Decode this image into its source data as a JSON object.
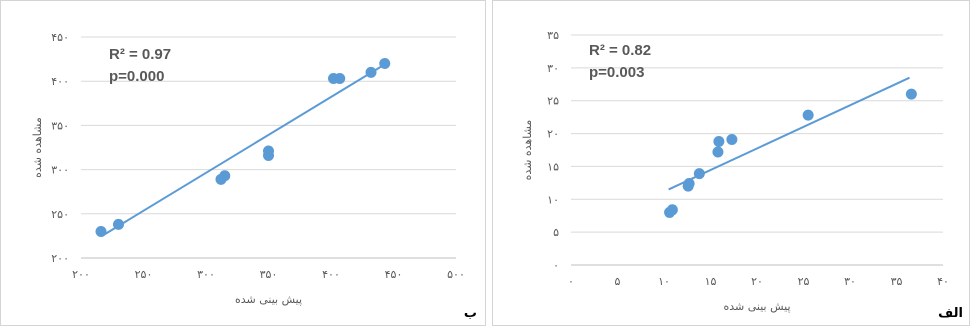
{
  "chart_data": [
    {
      "id": "b",
      "type": "scatter",
      "panel_label": "ب",
      "xlabel": "پیش بینی شده",
      "ylabel": "مشاهده شده",
      "xlim": [
        200,
        500
      ],
      "ylim": [
        200,
        450
      ],
      "xticks": [
        200,
        250,
        300,
        350,
        400,
        450,
        500
      ],
      "yticks": [
        200,
        250,
        300,
        350,
        400,
        450
      ],
      "xtick_labels": [
        "۲۰۰",
        "۲۵۰",
        "۳۰۰",
        "۳۵۰",
        "۴۰۰",
        "۴۵۰",
        "۵۰۰"
      ],
      "ytick_labels": [
        "۲۰۰",
        "۲۵۰",
        "۳۰۰",
        "۳۵۰",
        "۴۰۰",
        "۴۵۰"
      ],
      "annotations": [
        "R² = 0.97",
        "p=0.000"
      ],
      "points": [
        {
          "x": 216,
          "y": 230
        },
        {
          "x": 230,
          "y": 238
        },
        {
          "x": 312,
          "y": 289
        },
        {
          "x": 315,
          "y": 293
        },
        {
          "x": 350,
          "y": 316
        },
        {
          "x": 350,
          "y": 321
        },
        {
          "x": 402,
          "y": 403
        },
        {
          "x": 407,
          "y": 403
        },
        {
          "x": 432,
          "y": 410
        },
        {
          "x": 443,
          "y": 420
        }
      ],
      "trendline": {
        "x": [
          218,
          443
        ],
        "y": [
          226,
          419
        ]
      },
      "colors": {
        "point": "#5b9bd5",
        "trendline": "#5b9bd5",
        "grid": "#d9d9d9"
      }
    },
    {
      "id": "alef",
      "type": "scatter",
      "panel_label": "الف",
      "xlabel": "پیش بینی شده",
      "ylabel": "مشاهده شده",
      "xlim": [
        0,
        40
      ],
      "ylim": [
        0,
        35
      ],
      "xticks": [
        0,
        5,
        10,
        15,
        20,
        25,
        30,
        35,
        40
      ],
      "yticks": [
        0,
        5,
        10,
        15,
        20,
        25,
        30,
        35
      ],
      "xtick_labels": [
        "۰",
        "۵",
        "۱۰",
        "۱۵",
        "۲۰",
        "۲۵",
        "۳۰",
        "۳۵",
        "۴۰"
      ],
      "ytick_labels": [
        "۰",
        "۵",
        "۱۰",
        "۱۵",
        "۲۰",
        "۲۵",
        "۳۰",
        "۳۵"
      ],
      "annotations": [
        "R² = 0.82",
        "p=0.003"
      ],
      "points": [
        {
          "x": 10.6,
          "y": 8.0
        },
        {
          "x": 10.9,
          "y": 8.4
        },
        {
          "x": 12.6,
          "y": 12.0
        },
        {
          "x": 12.7,
          "y": 12.4
        },
        {
          "x": 13.8,
          "y": 13.9
        },
        {
          "x": 15.8,
          "y": 17.2
        },
        {
          "x": 15.9,
          "y": 18.8
        },
        {
          "x": 17.3,
          "y": 19.1
        },
        {
          "x": 25.5,
          "y": 22.8
        },
        {
          "x": 36.6,
          "y": 26.0
        }
      ],
      "trendline": {
        "x": [
          10.5,
          36.4
        ],
        "y": [
          11.5,
          28.5
        ]
      },
      "colors": {
        "point": "#5b9bd5",
        "trendline": "#5b9bd5",
        "grid": "#d9d9d9"
      }
    }
  ]
}
